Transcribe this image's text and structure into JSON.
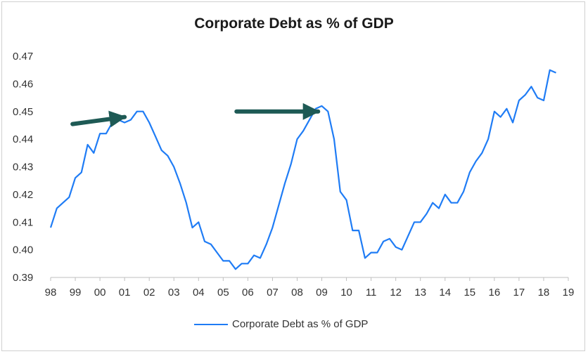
{
  "colors": {
    "series": "#1f7cf5",
    "arrow": "#1e5a55",
    "axis": "#bfbfbf",
    "text": "#333333"
  },
  "chart_data": {
    "type": "line",
    "title": "Corporate Debt as % of GDP",
    "xlabel": "",
    "ylabel": "",
    "ylim": [
      0.39,
      0.47
    ],
    "y_ticks": [
      "0.47",
      "0.46",
      "0.45",
      "0.44",
      "0.43",
      "0.42",
      "0.41",
      "0.40",
      "0.39"
    ],
    "x_ticks": [
      "98",
      "99",
      "00",
      "01",
      "02",
      "03",
      "04",
      "05",
      "06",
      "07",
      "08",
      "09",
      "10",
      "11",
      "12",
      "13",
      "14",
      "15",
      "16",
      "17",
      "18",
      "19"
    ],
    "grid": false,
    "legend_position": "bottom",
    "annotations": [
      {
        "type": "arrow",
        "target_year": 2001.0,
        "target_value": 0.448
      },
      {
        "type": "arrow",
        "target_year": 2008.85,
        "target_value": 0.45
      }
    ],
    "series": [
      {
        "name": "Corporate Debt as % of GDP",
        "x": [
          1998.0,
          1998.25,
          1998.5,
          1998.75,
          1999.0,
          1999.25,
          1999.5,
          1999.75,
          2000.0,
          2000.25,
          2000.5,
          2000.75,
          2001.0,
          2001.25,
          2001.5,
          2001.75,
          2002.0,
          2002.25,
          2002.5,
          2002.75,
          2003.0,
          2003.25,
          2003.5,
          2003.75,
          2004.0,
          2004.25,
          2004.5,
          2004.75,
          2005.0,
          2005.25,
          2005.5,
          2005.75,
          2006.0,
          2006.25,
          2006.5,
          2006.75,
          2007.0,
          2007.25,
          2007.5,
          2007.75,
          2008.0,
          2008.25,
          2008.5,
          2008.75,
          2009.0,
          2009.25,
          2009.5,
          2009.75,
          2010.0,
          2010.25,
          2010.5,
          2010.75,
          2011.0,
          2011.25,
          2011.5,
          2011.75,
          2012.0,
          2012.25,
          2012.5,
          2012.75,
          2013.0,
          2013.25,
          2013.5,
          2013.75,
          2014.0,
          2014.25,
          2014.5,
          2014.75,
          2015.0,
          2015.25,
          2015.5,
          2015.75,
          2016.0,
          2016.25,
          2016.5,
          2016.75,
          2017.0,
          2017.25,
          2017.5,
          2017.75,
          2018.0,
          2018.25,
          2018.5
        ],
        "values": [
          0.408,
          0.415,
          0.417,
          0.419,
          0.426,
          0.428,
          0.438,
          0.435,
          0.442,
          0.442,
          0.446,
          0.447,
          0.446,
          0.447,
          0.45,
          0.45,
          0.446,
          0.441,
          0.436,
          0.434,
          0.43,
          0.424,
          0.417,
          0.408,
          0.41,
          0.403,
          0.402,
          0.399,
          0.396,
          0.396,
          0.393,
          0.395,
          0.395,
          0.398,
          0.397,
          0.402,
          0.408,
          0.416,
          0.424,
          0.431,
          0.44,
          0.443,
          0.447,
          0.451,
          0.452,
          0.45,
          0.44,
          0.421,
          0.418,
          0.407,
          0.407,
          0.397,
          0.399,
          0.399,
          0.403,
          0.404,
          0.401,
          0.4,
          0.405,
          0.41,
          0.41,
          0.413,
          0.417,
          0.415,
          0.42,
          0.417,
          0.417,
          0.421,
          0.428,
          0.432,
          0.435,
          0.44,
          0.45,
          0.448,
          0.451,
          0.446,
          0.454,
          0.456,
          0.459,
          0.455,
          0.454,
          0.465,
          0.464
        ]
      }
    ]
  }
}
